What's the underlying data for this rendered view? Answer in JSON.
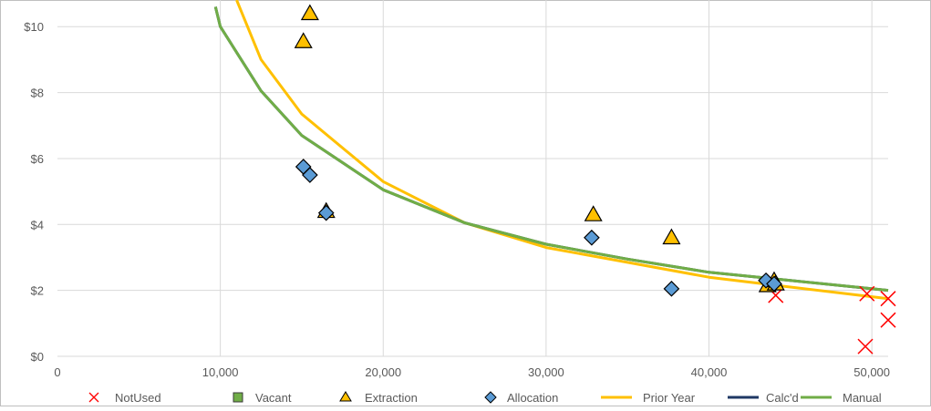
{
  "chart_data": {
    "type": "scatter",
    "title": "",
    "xlabel": "",
    "ylabel": "",
    "xlim": [
      0,
      51000
    ],
    "ylim": [
      0,
      10.2
    ],
    "x_ticks": [
      0,
      10000,
      20000,
      30000,
      40000,
      50000
    ],
    "x_tick_labels": [
      "0",
      "10,000",
      "20,000",
      "30,000",
      "40,000",
      "50,000"
    ],
    "y_ticks": [
      0,
      2,
      4,
      6,
      8,
      10
    ],
    "y_tick_labels": [
      "$0",
      "$2",
      "$4",
      "$6",
      "$8",
      "$10"
    ],
    "grid": true,
    "legend_position": "bottom",
    "series": [
      {
        "name": "NotUsed",
        "kind": "marker",
        "marker": "x",
        "color": "#ff0000",
        "points": [
          [
            44100,
            1.85
          ],
          [
            49700,
            1.9
          ],
          [
            49600,
            0.3
          ],
          [
            51000,
            1.75
          ],
          [
            51000,
            1.1
          ]
        ]
      },
      {
        "name": "Vacant",
        "kind": "marker",
        "marker": "square",
        "color": "#70ad47",
        "points": []
      },
      {
        "name": "Extraction",
        "kind": "marker",
        "marker": "triangle",
        "color": "#ffc000",
        "points": [
          [
            15500,
            10.4
          ],
          [
            15100,
            9.55
          ],
          [
            16500,
            4.4
          ],
          [
            32900,
            4.3
          ],
          [
            37700,
            3.6
          ],
          [
            43600,
            2.15
          ],
          [
            44000,
            2.3
          ],
          [
            44100,
            2.2
          ]
        ]
      },
      {
        "name": "Allocation",
        "kind": "marker",
        "marker": "diamond",
        "color": "#5b9bd5",
        "points": [
          [
            15100,
            5.75
          ],
          [
            15500,
            5.5
          ],
          [
            16500,
            4.35
          ],
          [
            32800,
            3.6
          ],
          [
            37700,
            2.05
          ],
          [
            43500,
            2.3
          ],
          [
            44000,
            2.2
          ]
        ]
      },
      {
        "name": "Prior Year",
        "kind": "line",
        "color": "#ffc000",
        "points": [
          [
            11000,
            10.9
          ],
          [
            12500,
            9.0
          ],
          [
            15000,
            7.35
          ],
          [
            20000,
            5.3
          ],
          [
            25000,
            4.05
          ],
          [
            30000,
            3.3
          ],
          [
            35000,
            2.85
          ],
          [
            40000,
            2.4
          ],
          [
            45000,
            2.1
          ],
          [
            51000,
            1.75
          ]
        ]
      },
      {
        "name": "Calc'd",
        "kind": "line",
        "color": "#1f3864",
        "points": [
          [
            9700,
            10.6
          ],
          [
            10000,
            10.0
          ],
          [
            12500,
            8.05
          ],
          [
            15000,
            6.7
          ],
          [
            20000,
            5.05
          ],
          [
            25000,
            4.05
          ],
          [
            30000,
            3.4
          ],
          [
            35000,
            2.95
          ],
          [
            40000,
            2.55
          ],
          [
            45000,
            2.3
          ],
          [
            51000,
            2.0
          ]
        ]
      },
      {
        "name": "Manual",
        "kind": "line",
        "color": "#70ad47",
        "points": [
          [
            9700,
            10.6
          ],
          [
            10000,
            10.0
          ],
          [
            12500,
            8.05
          ],
          [
            15000,
            6.7
          ],
          [
            20000,
            5.05
          ],
          [
            25000,
            4.05
          ],
          [
            30000,
            3.4
          ],
          [
            35000,
            2.95
          ],
          [
            40000,
            2.55
          ],
          [
            45000,
            2.3
          ],
          [
            51000,
            2.0
          ]
        ]
      }
    ]
  }
}
